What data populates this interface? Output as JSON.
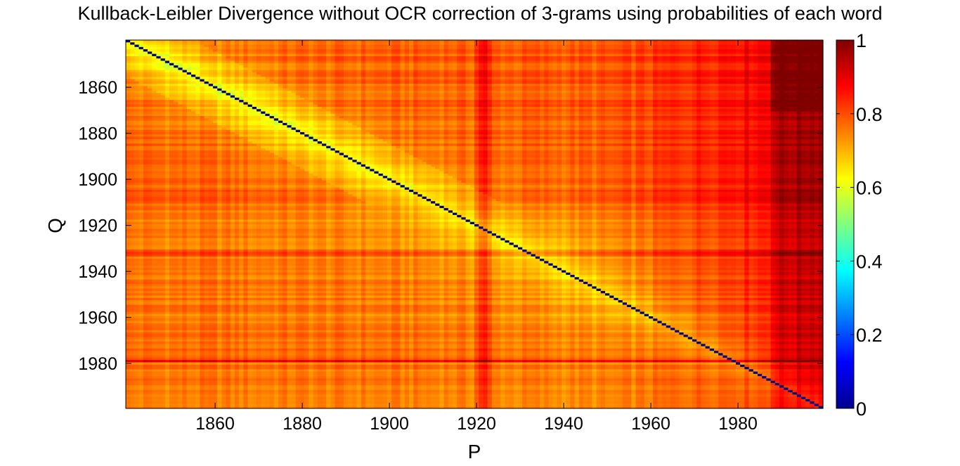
{
  "chart_data": {
    "type": "heatmap",
    "title": "Kullback-Leibler Divergence without OCR correction of 3-grams using probabilities of each word",
    "xlabel": "P",
    "ylabel": "Q",
    "x_range": [
      1840,
      1999
    ],
    "y_range": [
      1840,
      1999
    ],
    "x_ticks": [
      "1860",
      "1880",
      "1900",
      "1920",
      "1940",
      "1960",
      "1980"
    ],
    "y_ticks": [
      "1860",
      "1880",
      "1900",
      "1920",
      "1940",
      "1960",
      "1980"
    ],
    "y_axis_direction": "top-to-bottom",
    "colorbar": {
      "colormap": "jet",
      "range": [
        0,
        1
      ],
      "ticks": [
        "0",
        "0.2",
        "0.4",
        "0.6",
        "0.8",
        "1"
      ]
    },
    "diagonal_value": 0,
    "notable_rows_Q": [
      1932,
      1979
    ],
    "notable_columns_P": [
      1921
    ],
    "value_summary": {
      "near_diagonal_early_years": 0.6,
      "typical_off_diagonal": 0.75,
      "late_years_columns_1990_1999": 0.95
    }
  }
}
